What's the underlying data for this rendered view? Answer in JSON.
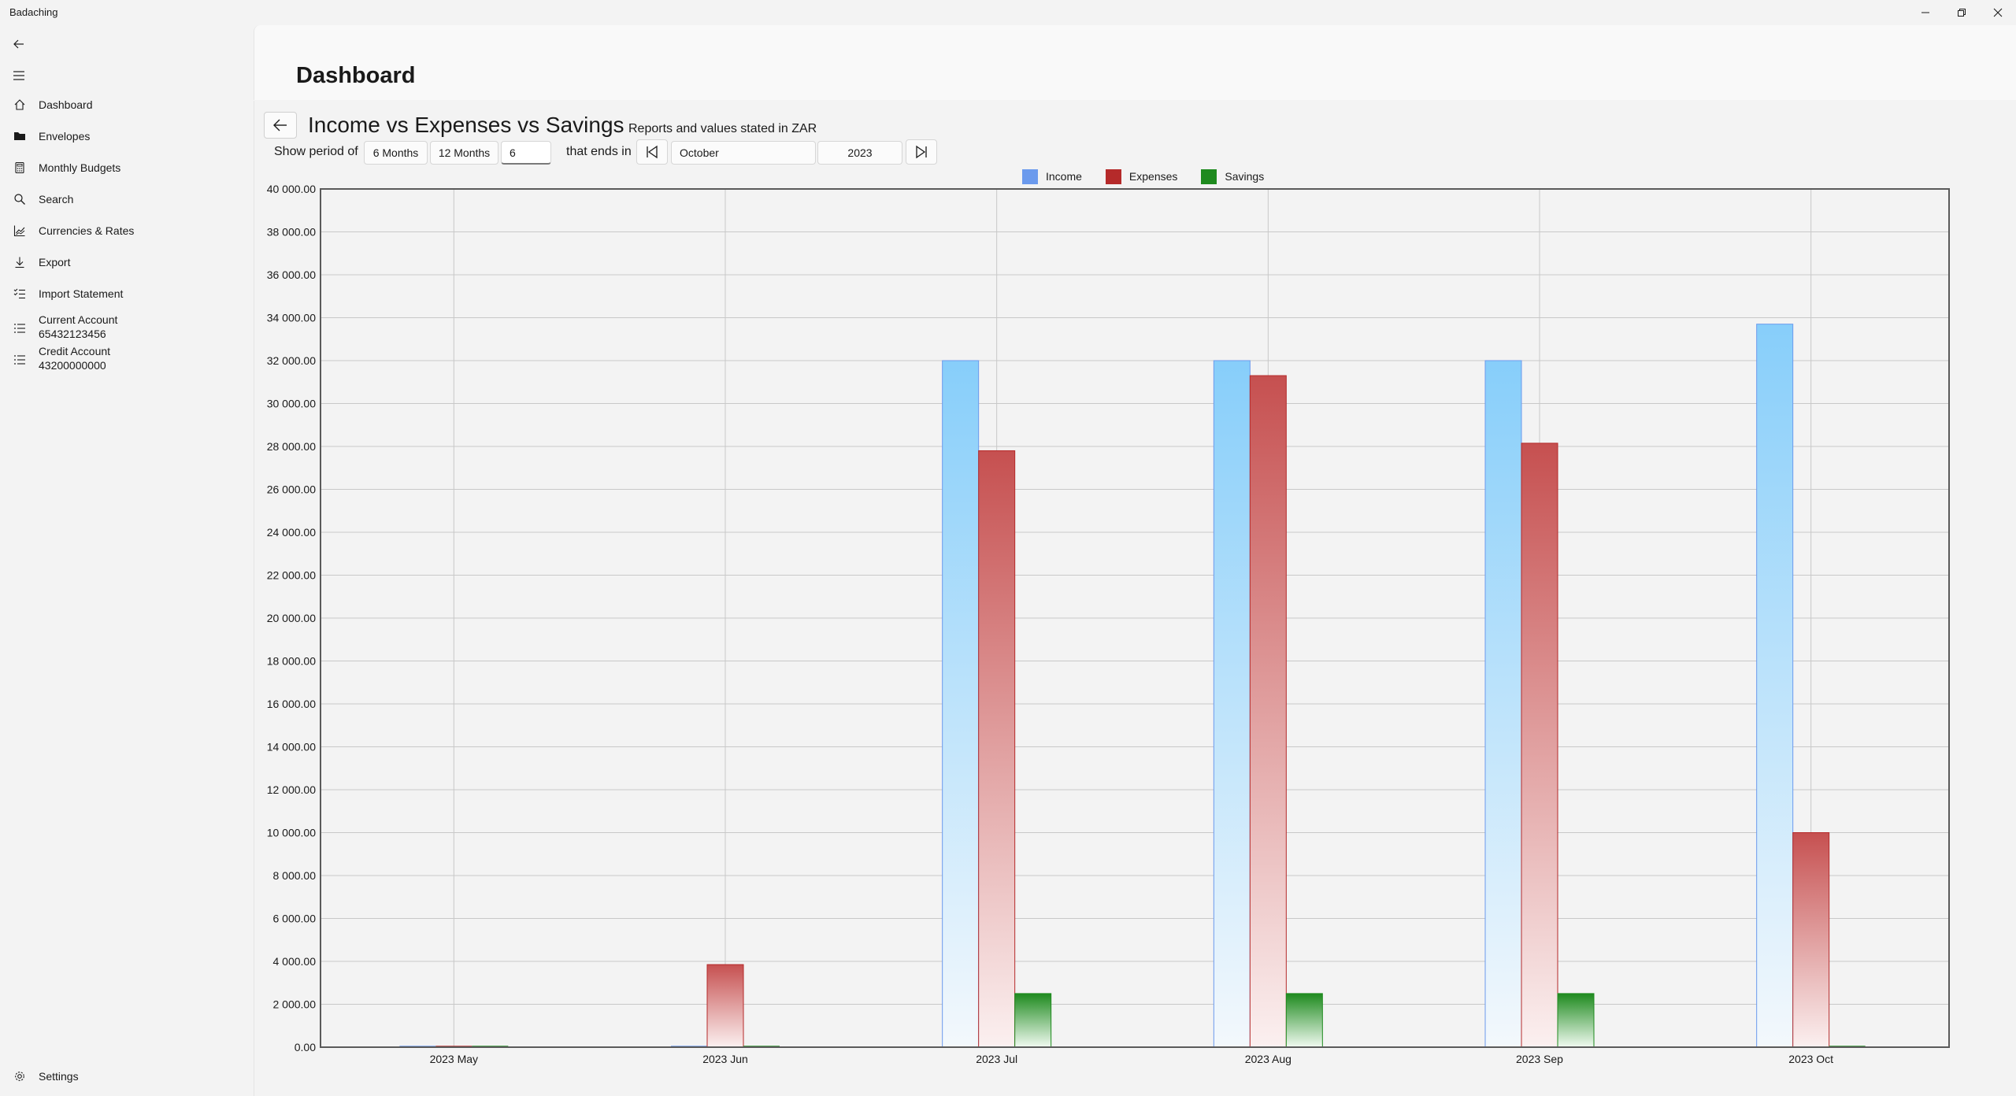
{
  "window": {
    "title": "Badaching",
    "minimize_icon": "minimize-icon",
    "restore_icon": "restore-icon",
    "close_icon": "close-icon"
  },
  "sidebar": {
    "back_icon": "back-arrow-icon",
    "menu_icon": "hamburger-menu-icon",
    "items": [
      {
        "label": "Dashboard",
        "icon": "home-icon"
      },
      {
        "label": "Envelopes",
        "icon": "folder-icon"
      },
      {
        "label": "Monthly Budgets",
        "icon": "calculator-icon"
      },
      {
        "label": "Search",
        "icon": "search-icon"
      },
      {
        "label": "Currencies & Rates",
        "icon": "chart-icon"
      },
      {
        "label": "Export",
        "icon": "download-icon"
      },
      {
        "label": "Import Statement",
        "icon": "checklist-icon"
      },
      {
        "label": "Current Account",
        "sub": "65432123456",
        "icon": "list-icon"
      },
      {
        "label": "Credit Account",
        "sub": "43200000000",
        "icon": "list-icon"
      }
    ],
    "settings_label": "Settings",
    "settings_icon": "gear-icon"
  },
  "page": {
    "title": "Dashboard"
  },
  "report": {
    "back_icon": "back-arrow-icon",
    "title": "Income vs Expenses vs Savings",
    "subtitle": "Reports and values stated in ZAR",
    "show_period_label": "Show period of",
    "btn_6_months": "6 Months",
    "btn_12_months": "12 Months",
    "period_value": "6",
    "ends_in_label": "that ends in",
    "first_icon": "skip-first-icon",
    "month": "October",
    "year": "2023",
    "last_icon": "skip-last-icon"
  },
  "colors": {
    "income": "#6b9aed",
    "expenses": "#b52a2a",
    "savings": "#1e8a1e"
  },
  "chart_data": {
    "type": "bar",
    "categories": [
      "2023 May",
      "2023 Jun",
      "2023 Jul",
      "2023 Aug",
      "2023 Sep",
      "2023 Oct"
    ],
    "series": [
      {
        "name": "Income",
        "values": [
          0,
          0,
          32000,
          32000,
          32000,
          33700
        ]
      },
      {
        "name": "Expenses",
        "values": [
          0,
          3850,
          27800,
          31300,
          28150,
          10000
        ]
      },
      {
        "name": "Savings",
        "values": [
          0,
          0,
          2500,
          2500,
          2500,
          0
        ]
      }
    ],
    "ylim": [
      0,
      40000
    ],
    "yticks": [
      "0.00",
      "2 000.00",
      "4 000.00",
      "6 000.00",
      "8 000.00",
      "10 000.00",
      "12 000.00",
      "14 000.00",
      "16 000.00",
      "18 000.00",
      "20 000.00",
      "22 000.00",
      "24 000.00",
      "26 000.00",
      "28 000.00",
      "30 000.00",
      "32 000.00",
      "34 000.00",
      "36 000.00",
      "38 000.00",
      "40 000.00"
    ],
    "grid": true,
    "legend": "top-center"
  }
}
